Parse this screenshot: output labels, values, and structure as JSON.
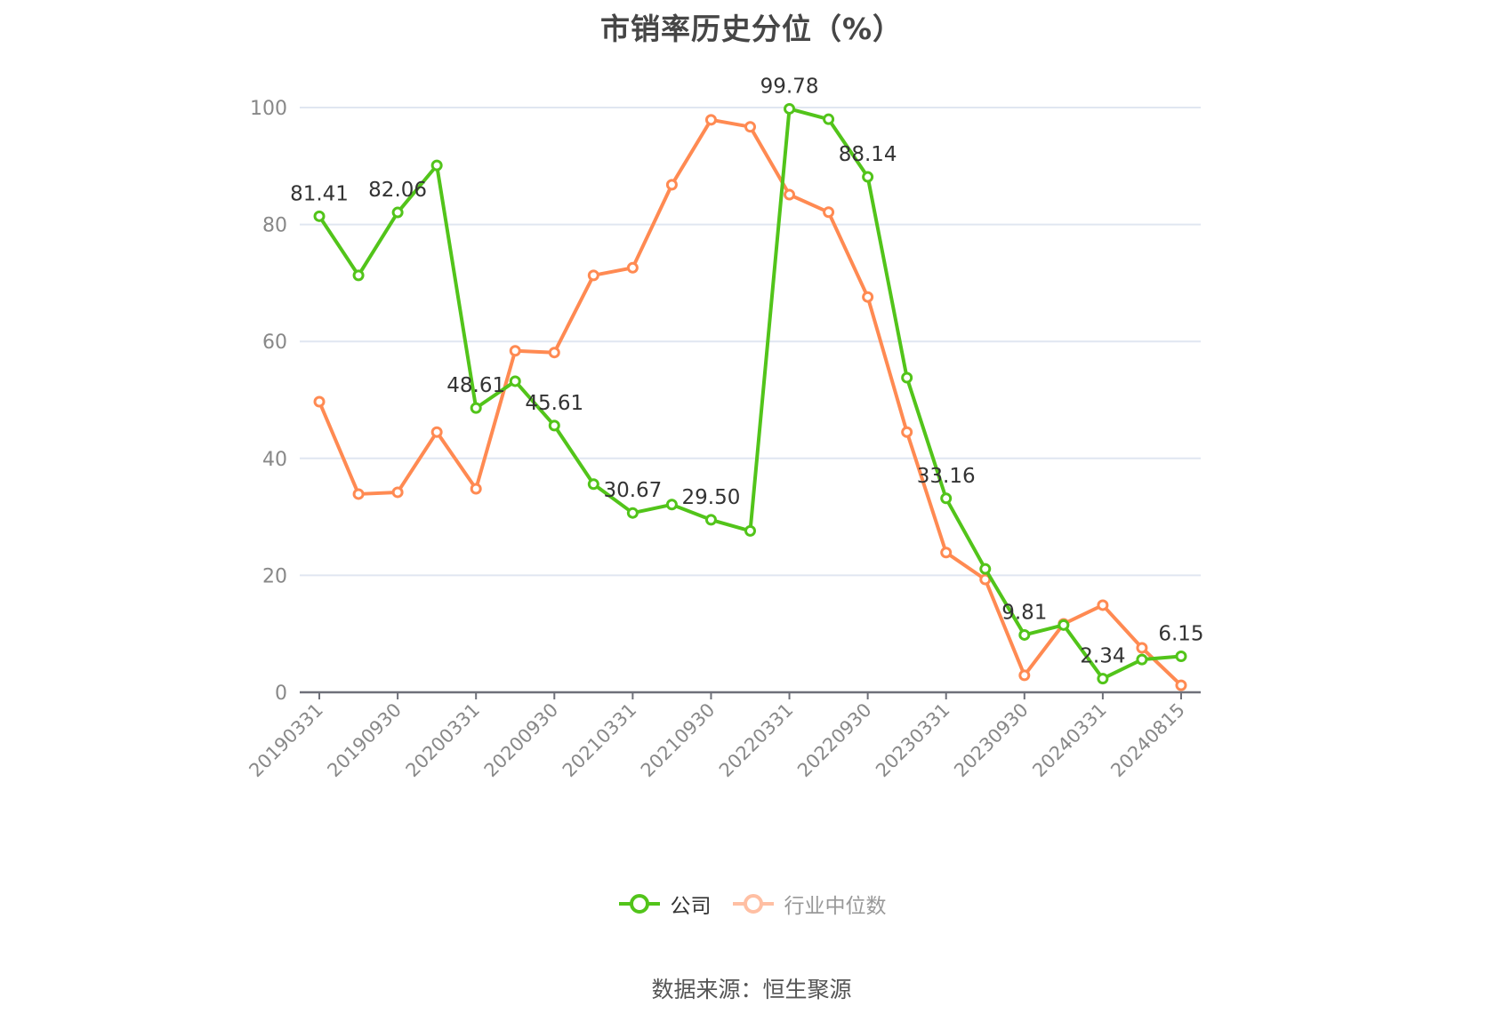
{
  "title": "市销率历史分位（%）",
  "legend": [
    {
      "label": "公司",
      "color": "#52c41a",
      "active": true
    },
    {
      "label": "行业中位数",
      "color": "#ff8a52",
      "active": false
    }
  ],
  "source": "数据来源：恒生聚源",
  "chart_data": {
    "type": "line",
    "title": "市销率历史分位（%）",
    "xlabel": "",
    "ylabel": "",
    "ylim": [
      0,
      100
    ],
    "yticks": [
      0,
      20,
      40,
      60,
      80,
      100
    ],
    "grid": true,
    "legend_position": "bottom",
    "x": [
      "20190331",
      "20190630",
      "20190930",
      "20191231",
      "20200331",
      "20200630",
      "20200930",
      "20201231",
      "20210331",
      "20210630",
      "20210930",
      "20211231",
      "20220331",
      "20220630",
      "20220930",
      "20221231",
      "20230331",
      "20230630",
      "20230930",
      "20231231",
      "20240331",
      "20240630",
      "20240815"
    ],
    "xtick_labels": [
      "20190331",
      "20190930",
      "20200331",
      "20200930",
      "20210331",
      "20210930",
      "20220331",
      "20220930",
      "20230331",
      "20230930",
      "20240331",
      "20240815"
    ],
    "series": [
      {
        "name": "公司",
        "color": "#52c41a",
        "values": [
          81.41,
          71.3,
          82.06,
          90.1,
          48.61,
          53.2,
          45.61,
          35.6,
          30.67,
          32.1,
          29.5,
          27.6,
          99.78,
          98.0,
          88.14,
          53.8,
          33.16,
          21.1,
          9.81,
          11.5,
          2.34,
          5.6,
          6.15
        ],
        "labels": {
          "0": "81.41",
          "2": "82.06",
          "4": "48.61",
          "6": "45.61",
          "8": "30.67",
          "10": "29.50",
          "12": "99.78",
          "14": "88.14",
          "16": "33.16",
          "18": "9.81",
          "20": "2.34",
          "22": "6.15"
        }
      },
      {
        "name": "行业中位数",
        "color": "#ff8a52",
        "values": [
          49.7,
          33.9,
          34.2,
          44.5,
          34.8,
          58.4,
          58.1,
          71.3,
          72.6,
          86.8,
          97.9,
          96.7,
          85.1,
          82.1,
          67.6,
          44.5,
          23.9,
          19.3,
          2.9,
          11.7,
          14.9,
          7.6,
          1.2
        ]
      }
    ]
  }
}
